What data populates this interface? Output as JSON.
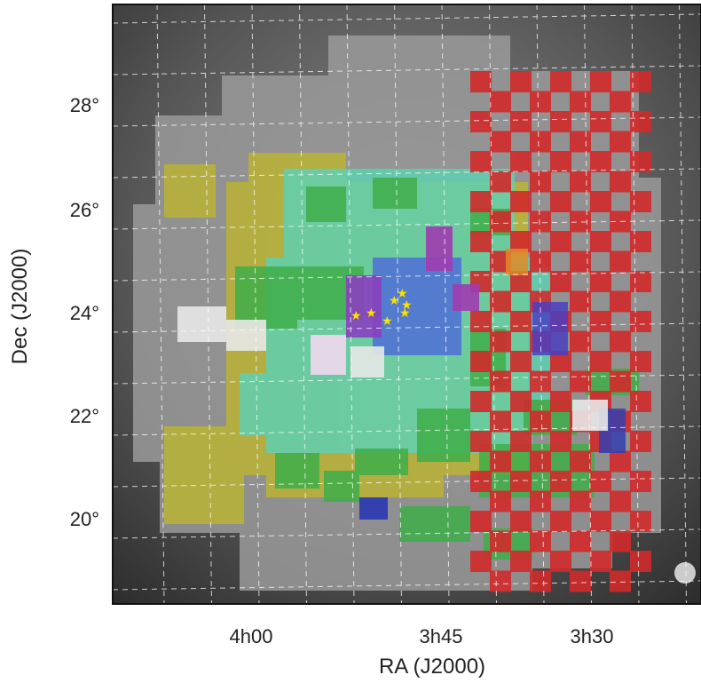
{
  "axes": {
    "x_label": "RA (J2000)",
    "y_label": "Dec (J2000)",
    "x_ticks": [
      "4h00",
      "3h45",
      "3h30"
    ],
    "y_ticks": [
      "28°",
      "26°",
      "24°",
      "22°",
      "20°"
    ]
  }
}
